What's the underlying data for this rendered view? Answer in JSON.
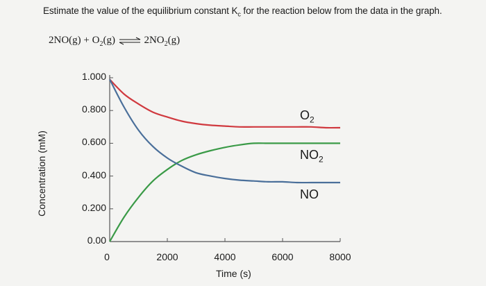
{
  "question": {
    "prefix": "Estimate the value of the equilibrium constant K",
    "k_sub": "c",
    "suffix": " for the reaction below from the data in the graph."
  },
  "reaction": {
    "r1": "2NO(g) + O",
    "r1_sub": "2",
    "r2": "(g)",
    "p1": "2NO",
    "p1_sub": "2",
    "p2": "(g)"
  },
  "chart_data": {
    "type": "line",
    "xlabel": "Time (s)",
    "ylabel": "Concentration (mM)",
    "x_ticks": [
      "0",
      "2000",
      "4000",
      "6000",
      "8000"
    ],
    "y_ticks": [
      "1.000",
      "0.800",
      "0.600",
      "0.400",
      "0.200",
      "0.00"
    ],
    "xlim": [
      0,
      8000
    ],
    "ylim": [
      0,
      1.0
    ],
    "x": [
      0,
      500,
      1000,
      1500,
      2000,
      2500,
      3000,
      3500,
      4000,
      4500,
      5000,
      5500,
      6000,
      6500,
      7000,
      7500,
      8000
    ],
    "series": [
      {
        "name": "O2",
        "label": "O",
        "label_sub": "2",
        "color": "#d0393f",
        "values": [
          0.99,
          0.9,
          0.84,
          0.79,
          0.76,
          0.735,
          0.72,
          0.71,
          0.705,
          0.7,
          0.7,
          0.7,
          0.7,
          0.7,
          0.7,
          0.695,
          0.695
        ]
      },
      {
        "name": "NO2",
        "label": "NO",
        "label_sub": "2",
        "color": "#3a9a47",
        "values": [
          0.0,
          0.15,
          0.27,
          0.37,
          0.44,
          0.495,
          0.53,
          0.555,
          0.575,
          0.59,
          0.6,
          0.6,
          0.6,
          0.6,
          0.6,
          0.6,
          0.6
        ]
      },
      {
        "name": "NO",
        "label": "NO",
        "label_sub": "",
        "color": "#4a6f9a",
        "values": [
          0.99,
          0.82,
          0.68,
          0.58,
          0.51,
          0.46,
          0.42,
          0.4,
          0.385,
          0.375,
          0.37,
          0.365,
          0.365,
          0.36,
          0.36,
          0.36,
          0.36
        ]
      }
    ]
  }
}
